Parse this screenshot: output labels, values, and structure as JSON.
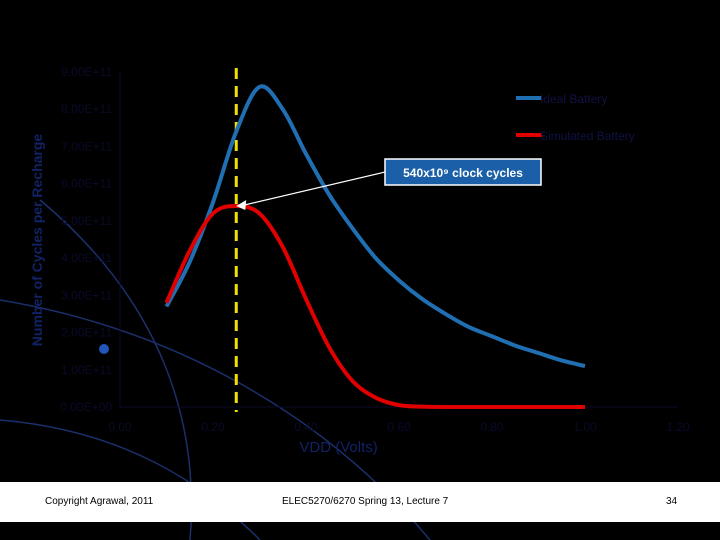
{
  "slide": {
    "footer_left": "Copyright Agrawal, 2011",
    "footer_center": "ELEC5270/6270 Spring 13, Lecture 7",
    "page_number": "34"
  },
  "colors": {
    "background": "#000000",
    "footer_band": "#ffffff",
    "ideal": "#1f6fb2",
    "simulated": "#e00000",
    "marker_line": "#f2e100",
    "axis_text": "#0a0a2a",
    "callout_bg": "#1a5fa8"
  },
  "annotation": {
    "label": "540x10⁹ clock cycles",
    "arrow_to": {
      "x": 0.25,
      "y": 540000000000.0
    }
  },
  "chart_data": {
    "type": "line",
    "xlabel": "VDD (Volts)",
    "ylabel": "Number of Cycles per Recharge",
    "xlim": [
      0,
      1.2
    ],
    "ylim": [
      0,
      900000000000.0
    ],
    "x_ticks": [
      0,
      0.2,
      0.4,
      0.6,
      0.8,
      1.0,
      1.2
    ],
    "x_tick_labels": [
      "0.00",
      "0.20",
      "0.40",
      "0.60",
      "0.80",
      "1.00",
      "1.20"
    ],
    "y_ticks": [
      0,
      100000000000.0,
      200000000000.0,
      300000000000.0,
      400000000000.0,
      500000000000.0,
      600000000000.0,
      700000000000.0,
      800000000000.0,
      900000000000.0
    ],
    "y_tick_labels": [
      "0.00E+00",
      "1.00E+11",
      "2.00E+11",
      "3.00E+11",
      "4.00E+11",
      "5.00E+11",
      "6.00E+11",
      "7.00E+11",
      "8.00E+11",
      "9.00E+11"
    ],
    "legend_position": "top-right",
    "vertical_marker_x": 0.25,
    "series": [
      {
        "name": "Ideal Battery",
        "x": [
          0.1,
          0.15,
          0.2,
          0.25,
          0.3,
          0.35,
          0.4,
          0.45,
          0.5,
          0.55,
          0.6,
          0.65,
          0.7,
          0.75,
          0.8,
          0.85,
          0.9,
          0.95,
          1.0
        ],
        "y": [
          270000000000.0,
          390000000000.0,
          550000000000.0,
          740000000000.0,
          860000000000.0,
          800000000000.0,
          680000000000.0,
          570000000000.0,
          480000000000.0,
          400000000000.0,
          340000000000.0,
          290000000000.0,
          250000000000.0,
          215000000000.0,
          190000000000.0,
          165000000000.0,
          145000000000.0,
          125000000000.0,
          110000000000.0
        ]
      },
      {
        "name": "Simulated Battery",
        "x": [
          0.1,
          0.15,
          0.2,
          0.25,
          0.3,
          0.35,
          0.4,
          0.45,
          0.5,
          0.55,
          0.6,
          0.65,
          0.7,
          0.8,
          0.9,
          1.0
        ],
        "y": [
          280000000000.0,
          420000000000.0,
          520000000000.0,
          540000000000.0,
          520000000000.0,
          430000000000.0,
          290000000000.0,
          160000000000.0,
          70000000000.0,
          25000000000.0,
          5000000000.0,
          1000000000.0,
          0,
          0,
          0,
          0
        ]
      }
    ]
  }
}
